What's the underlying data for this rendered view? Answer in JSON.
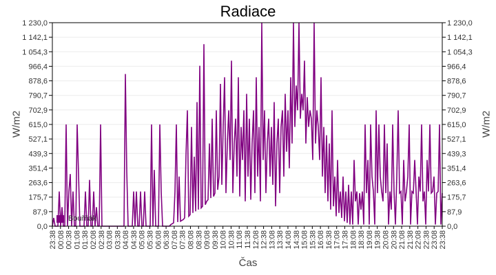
{
  "chart_data": {
    "type": "line",
    "title": "Radiace",
    "xlabel": "Čas",
    "ylabel": "W/m2",
    "ylim": [
      0,
      1230
    ],
    "y_ticks": [
      "0,0",
      "87,9",
      "175,7",
      "263,6",
      "351,4",
      "439,3",
      "527,1",
      "615,0",
      "702,9",
      "790,7",
      "878,6",
      "966,4",
      "1 054,3",
      "1 142,1",
      "1 230,0"
    ],
    "x_ticks": [
      "23:38",
      "00:08",
      "00:38",
      "01:08",
      "01:38",
      "02:08",
      "02:38",
      "03:08",
      "03:38",
      "04:08",
      "04:38",
      "05:08",
      "05:38",
      "06:08",
      "06:38",
      "07:08",
      "07:38",
      "08:08",
      "08:38",
      "09:08",
      "09:38",
      "10:08",
      "10:38",
      "11:08",
      "11:38",
      "12:08",
      "12:38",
      "13:08",
      "13:38",
      "14:08",
      "14:38",
      "15:08",
      "15:38",
      "16:08",
      "16:38",
      "17:08",
      "17:38",
      "18:08",
      "18:38",
      "19:08",
      "19:38",
      "20:08",
      "20:38",
      "21:08",
      "21:38",
      "22:08",
      "22:38",
      "23:08",
      "23:38"
    ],
    "grid": true,
    "legend": {
      "position": "bottom-left inside",
      "entries": [
        "Bouřňák"
      ]
    },
    "series": [
      {
        "name": "Bouřňák",
        "color": "#800080",
        "values": [
          0,
          50,
          0,
          0,
          0,
          210,
          0,
          115,
          0,
          0,
          615,
          0,
          210,
          315,
          0,
          210,
          0,
          0,
          615,
          315,
          0,
          0,
          0,
          0,
          210,
          0,
          0,
          280,
          0,
          0,
          210,
          0,
          115,
          0,
          0,
          615,
          0,
          0,
          0,
          0,
          0,
          0,
          0,
          0,
          0,
          0,
          0,
          0,
          0,
          0,
          0,
          0,
          0,
          920,
          330,
          0,
          0,
          0,
          0,
          210,
          0,
          210,
          0,
          0,
          210,
          0,
          0,
          210,
          0,
          0,
          0,
          0,
          615,
          0,
          340,
          0,
          0,
          0,
          615,
          210,
          0,
          0,
          0,
          0,
          0,
          0,
          10,
          15,
          20,
          210,
          615,
          25,
          300,
          30,
          35,
          40,
          50,
          430,
          700,
          60,
          70,
          600,
          80,
          420,
          90,
          750,
          100,
          970,
          110,
          120,
          1100,
          130,
          150,
          160,
          500,
          170,
          650,
          180,
          200,
          700,
          220,
          300,
          860,
          250,
          600,
          900,
          200,
          500,
          700,
          400,
          1000,
          200,
          500,
          650,
          300,
          900,
          180,
          600,
          400,
          700,
          150,
          800,
          300,
          650,
          160,
          500,
          700,
          200,
          900,
          300,
          600,
          150,
          1230,
          400,
          700,
          200,
          500,
          650,
          300,
          600,
          250,
          750,
          120,
          500,
          650,
          200,
          600,
          700,
          300,
          800,
          450,
          700,
          350,
          900,
          500,
          1230,
          600,
          850,
          700,
          1230,
          650,
          800,
          700,
          1000,
          500,
          780,
          600,
          700,
          650,
          400,
          1230,
          500,
          700,
          600,
          400,
          900,
          300,
          600,
          200,
          550,
          150,
          500,
          100,
          700,
          120,
          300,
          60,
          400,
          80,
          210,
          50,
          300,
          30,
          210,
          20,
          250,
          10,
          210,
          10,
          400,
          150,
          210,
          10,
          200,
          100,
          210,
          10,
          615,
          200,
          400,
          10,
          615,
          300,
          210,
          10,
          700,
          200,
          615,
          300,
          210,
          150,
          615,
          200,
          500,
          10,
          210,
          100,
          615,
          210,
          10,
          300,
          700,
          200,
          210,
          10,
          400,
          150,
          210,
          300,
          615,
          10,
          210,
          200,
          400,
          210,
          10,
          300,
          210,
          615,
          150,
          210,
          10,
          400,
          210,
          615,
          200,
          210,
          300,
          10,
          200,
          210,
          615,
          10,
          200
        ]
      }
    ]
  }
}
